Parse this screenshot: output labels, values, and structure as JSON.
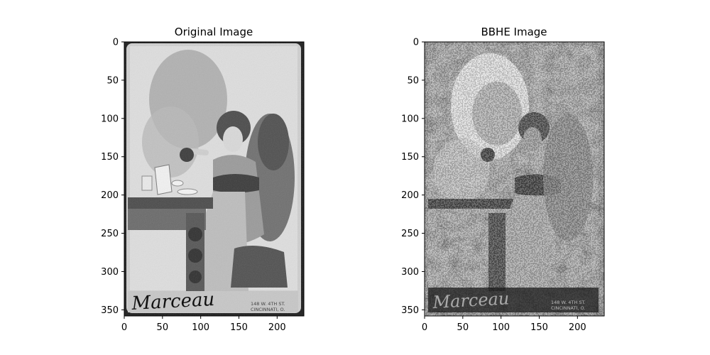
{
  "panels": [
    {
      "title": "Original Image",
      "image": {
        "subject": "vintage cabinet-card photograph: young girl seated at a table holding a teapot, with a pitcher, cups and saucers",
        "tone": "grayscale, light",
        "signature": "Marceau",
        "imprint_line1": "148 W. 4TH ST.",
        "imprint_line2": "CINCINNATI, O."
      },
      "x_ticks": [
        "0",
        "50",
        "100",
        "150",
        "200"
      ],
      "y_ticks": [
        "0",
        "50",
        "100",
        "150",
        "200",
        "250",
        "300",
        "350"
      ],
      "x_range": [
        0,
        235
      ],
      "y_range": [
        0,
        358
      ]
    },
    {
      "title": "BBHE Image",
      "image": {
        "subject": "same photograph after bi-histogram equalization (BBHE): high-contrast posterized grayscale with dark borders",
        "tone": "grayscale, high contrast",
        "signature": "Marceau",
        "imprint_line1": "148 W. 4TH ST.",
        "imprint_line2": "CINCINNATI, O."
      },
      "x_ticks": [
        "0",
        "50",
        "100",
        "150",
        "200"
      ],
      "y_ticks": [
        "0",
        "50",
        "100",
        "150",
        "200",
        "250",
        "300",
        "350"
      ],
      "x_range": [
        0,
        235
      ],
      "y_range": [
        0,
        358
      ]
    }
  ]
}
